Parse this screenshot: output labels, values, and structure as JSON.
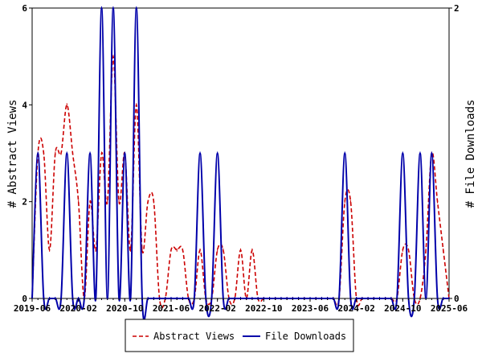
{
  "chart_data": {
    "type": "line",
    "x_tick_labels": [
      "2019-06",
      "2020-02",
      "2020-10",
      "2021-06",
      "2022-02",
      "2022-10",
      "2023-06",
      "2024-02",
      "2024-10",
      "2025-06"
    ],
    "x_tick_positions": [
      0,
      8,
      16,
      24,
      32,
      40,
      48,
      56,
      64,
      72
    ],
    "x_range": [
      0,
      72
    ],
    "y_left": {
      "label": "# Abstract Views",
      "range": [
        0,
        6
      ],
      "ticks": [
        0,
        2,
        4,
        6
      ]
    },
    "y_right": {
      "label": "# File Downloads",
      "range": [
        0,
        2
      ],
      "ticks": [
        0,
        2
      ]
    },
    "legend_position": "bottom",
    "grid": false,
    "series": [
      {
        "name": "Abstract Views",
        "axis": "left",
        "style": "dashed",
        "color": "#cc0000",
        "values": [
          0,
          3,
          3,
          1,
          3,
          3,
          4,
          3,
          2,
          0,
          2,
          1,
          3,
          2,
          5,
          2,
          3,
          1,
          4,
          1,
          2,
          2,
          0,
          0,
          1,
          1,
          1,
          0,
          0,
          1,
          0,
          0,
          1,
          1,
          0,
          0,
          1,
          0,
          1,
          0,
          0,
          0,
          0,
          0,
          0,
          0,
          0,
          0,
          0,
          0,
          0,
          0,
          0,
          0,
          2,
          2,
          0,
          0,
          0,
          0,
          0,
          0,
          0,
          0,
          1,
          1,
          0,
          0,
          1,
          3,
          2,
          1,
          0
        ]
      },
      {
        "name": "File Downloads",
        "axis": "right",
        "style": "solid",
        "color": "#0000aa",
        "values": [
          0,
          1,
          0,
          0,
          0,
          0,
          1,
          0,
          0,
          0,
          1,
          0,
          2,
          0,
          2,
          0,
          1,
          0,
          2,
          0,
          0,
          0,
          0,
          0,
          0,
          0,
          0,
          0,
          0,
          1,
          0,
          0,
          1,
          0,
          0,
          0,
          0,
          0,
          0,
          0,
          0,
          0,
          0,
          0,
          0,
          0,
          0,
          0,
          0,
          0,
          0,
          0,
          0,
          0,
          1,
          0,
          0,
          0,
          0,
          0,
          0,
          0,
          0,
          0,
          1,
          0,
          0,
          1,
          0,
          1,
          0,
          0,
          0
        ]
      }
    ]
  }
}
